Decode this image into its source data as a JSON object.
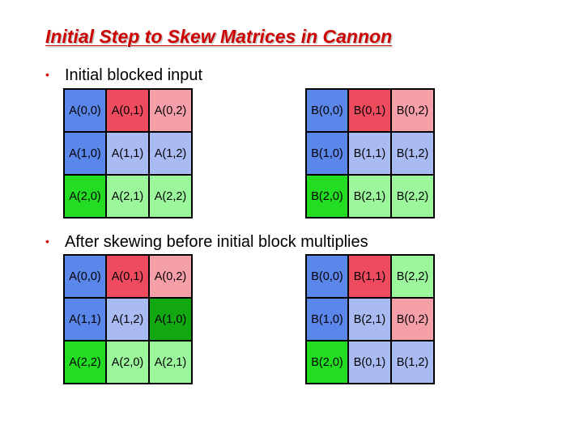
{
  "title": "Initial Step to Skew Matrices in Cannon",
  "bullets": [
    "Initial blocked input",
    "After skewing before initial block multiplies"
  ],
  "palette": {
    "red": "#ee4b5e",
    "pink": "#f5a0a8",
    "blue": "#5b86ea",
    "lightblue": "#a9bbf2",
    "green": "#22dd22",
    "lightgreen": "#9cf79c",
    "darkgreen": "#11a811"
  },
  "grids": [
    {
      "name": "initial-a",
      "cells": [
        [
          {
            "label": "A(0,0)",
            "color": "#5b86ea"
          },
          {
            "label": "A(0,1)",
            "color": "#ee4b5e"
          },
          {
            "label": "A(0,2)",
            "color": "#f5a0a8"
          }
        ],
        [
          {
            "label": "A(1,0)",
            "color": "#5b86ea"
          },
          {
            "label": "A(1,1)",
            "color": "#a9bbf2"
          },
          {
            "label": "A(1,2)",
            "color": "#a9bbf2"
          }
        ],
        [
          {
            "label": "A(2,0)",
            "color": "#22dd22"
          },
          {
            "label": "A(2,1)",
            "color": "#9cf79c"
          },
          {
            "label": "A(2,2)",
            "color": "#9cf79c"
          }
        ]
      ]
    },
    {
      "name": "initial-b",
      "cells": [
        [
          {
            "label": "B(0,0)",
            "color": "#5b86ea"
          },
          {
            "label": "B(0,1)",
            "color": "#ee4b5e"
          },
          {
            "label": "B(0,2)",
            "color": "#f5a0a8"
          }
        ],
        [
          {
            "label": "B(1,0)",
            "color": "#5b86ea"
          },
          {
            "label": "B(1,1)",
            "color": "#a9bbf2"
          },
          {
            "label": "B(1,2)",
            "color": "#a9bbf2"
          }
        ],
        [
          {
            "label": "B(2,0)",
            "color": "#22dd22"
          },
          {
            "label": "B(2,1)",
            "color": "#9cf79c"
          },
          {
            "label": "B(2,2)",
            "color": "#9cf79c"
          }
        ]
      ]
    },
    {
      "name": "skewed-a",
      "cells": [
        [
          {
            "label": "A(0,0)",
            "color": "#5b86ea"
          },
          {
            "label": "A(0,1)",
            "color": "#ee4b5e"
          },
          {
            "label": "A(0,2)",
            "color": "#f5a0a8"
          }
        ],
        [
          {
            "label": "A(1,1)",
            "color": "#5b86ea"
          },
          {
            "label": "A(1,2)",
            "color": "#a9bbf2"
          },
          {
            "label": "A(1,0)",
            "color": "#11a811"
          }
        ],
        [
          {
            "label": "A(2,2)",
            "color": "#22dd22"
          },
          {
            "label": "A(2,0)",
            "color": "#9cf79c"
          },
          {
            "label": "A(2,1)",
            "color": "#9cf79c"
          }
        ]
      ]
    },
    {
      "name": "skewed-b",
      "cells": [
        [
          {
            "label": "B(0,0)",
            "color": "#5b86ea"
          },
          {
            "label": "B(1,1)",
            "color": "#ee4b5e"
          },
          {
            "label": "B(2,2)",
            "color": "#9cf79c"
          }
        ],
        [
          {
            "label": "B(1,0)",
            "color": "#5b86ea"
          },
          {
            "label": "B(2,1)",
            "color": "#a9bbf2"
          },
          {
            "label": "B(0,2)",
            "color": "#f5a0a8"
          }
        ],
        [
          {
            "label": "B(2,0)",
            "color": "#22dd22"
          },
          {
            "label": "B(0,1)",
            "color": "#a9bbf2"
          },
          {
            "label": "B(1,2)",
            "color": "#a9bbf2"
          }
        ]
      ]
    }
  ]
}
